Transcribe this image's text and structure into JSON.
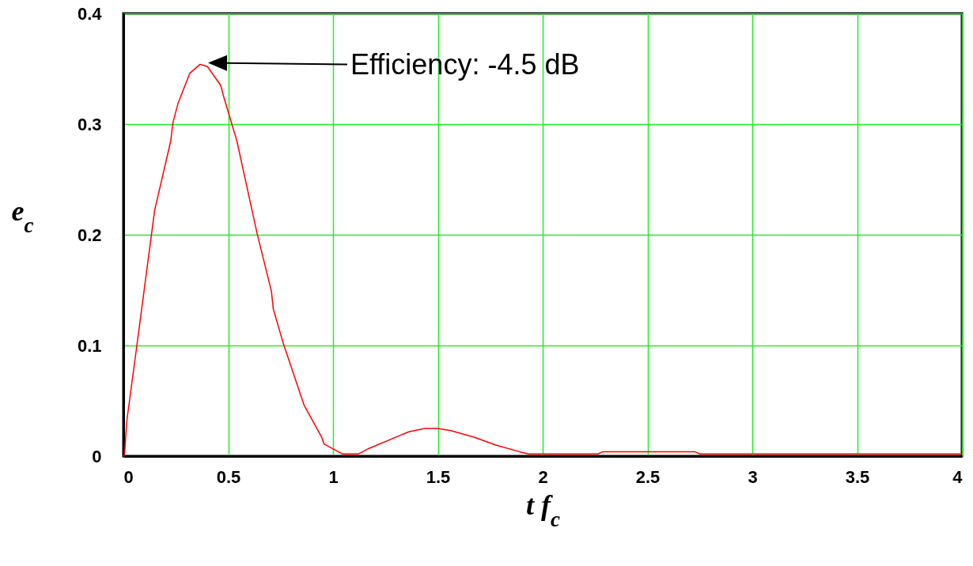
{
  "chart_data": {
    "type": "line",
    "xlabel": "t f$_{c}$",
    "ylabel": "e$_{c}$",
    "x": [
      0,
      0.005,
      0.017,
      0.065,
      0.149,
      0.226,
      0.236,
      0.261,
      0.317,
      0.366,
      0.401,
      0.464,
      0.478,
      0.541,
      0.638,
      0.706,
      0.715,
      0.764,
      0.862,
      0.946,
      0.957,
      1.044,
      1.122,
      1.172,
      1.361,
      1.437,
      1.498,
      1.562,
      1.675,
      1.776,
      1.889,
      1.933,
      2.264,
      2.287,
      2.725,
      2.75,
      4.0
    ],
    "series": [
      {
        "color": "#ff0000",
        "values": [
          0,
          0.001,
          0.033,
          0.101,
          0.222,
          0.285,
          0.301,
          0.319,
          0.346,
          0.354,
          0.352,
          0.335,
          0.325,
          0.285,
          0.201,
          0.149,
          0.133,
          0.101,
          0.046,
          0.017,
          0.011,
          0.002,
          0.002,
          0.007,
          0.022,
          0.025,
          0.025,
          0.023,
          0.017,
          0.01,
          0.004,
          0.002,
          0.002,
          0.004,
          0.004,
          0.002,
          0.002
        ]
      }
    ],
    "xlim": [
      0,
      4
    ],
    "xticks": [
      0,
      0.5,
      1,
      1.5,
      2,
      2.5,
      3,
      3.5,
      4
    ],
    "ylim": [
      0,
      0.4
    ],
    "yticks": [
      0,
      0.1,
      0.2,
      0.3,
      0.4
    ],
    "grid": true,
    "marker": "none",
    "line_style": "solid",
    "annotations": [
      "Efficiency: -4.5 dB"
    ]
  }
}
